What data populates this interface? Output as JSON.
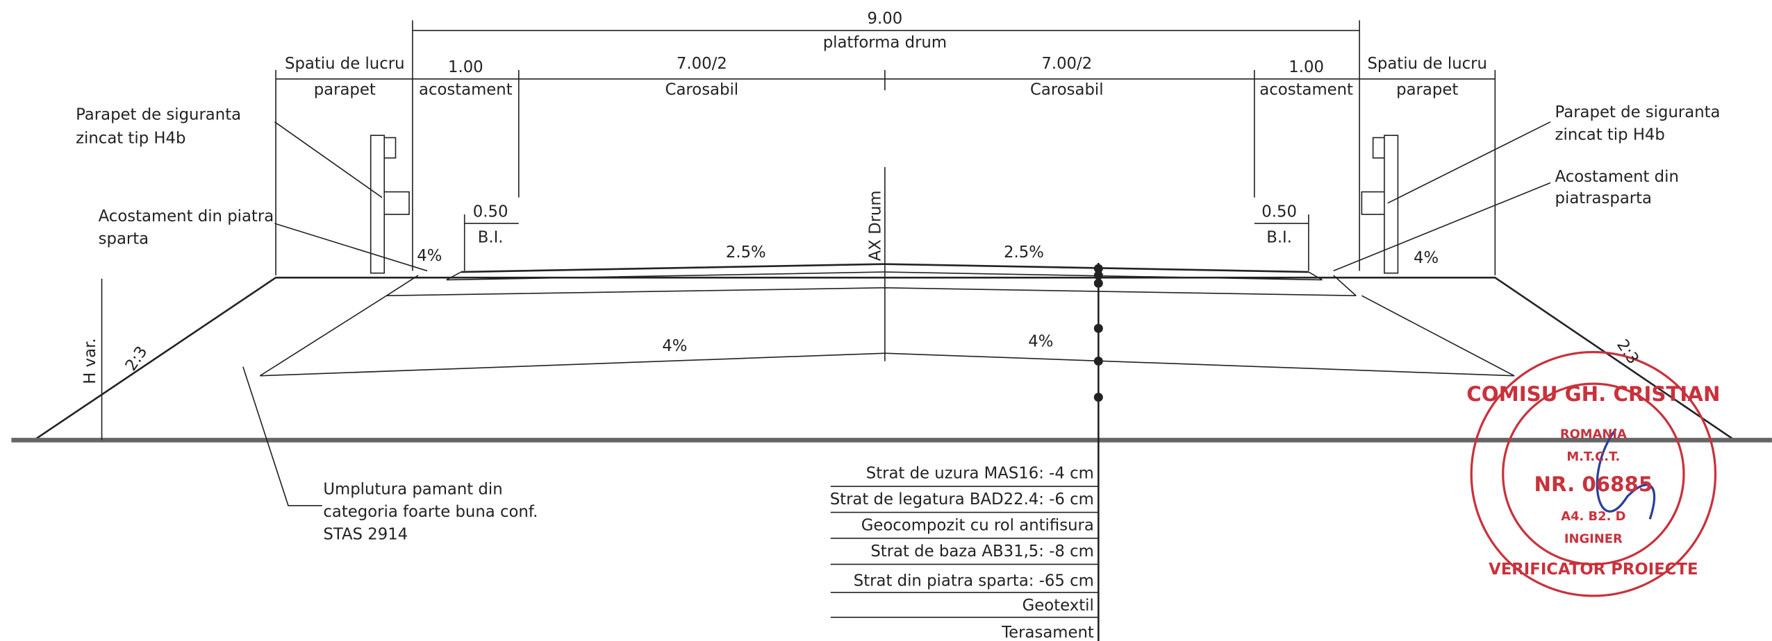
{
  "dimensions": {
    "total": "9.00",
    "total_label": "platforma drum",
    "left_work": {
      "title": "Spatiu de lucru",
      "label": "parapet"
    },
    "left_shoulder": {
      "value": "1.00",
      "label": "acostament"
    },
    "left_lane": {
      "value": "7.00/2",
      "label": "Carosabil"
    },
    "right_lane": {
      "value": "7.00/2",
      "label": "Carosabil"
    },
    "right_shoulder": {
      "value": "1.00",
      "label": "acostament"
    },
    "right_work": {
      "title": "Spatiu de lucru",
      "label": "parapet"
    },
    "left_bi": {
      "value": "0.50",
      "label": "B.I."
    },
    "right_bi": {
      "value": "0.50",
      "label": "B.I."
    }
  },
  "labels": {
    "left_parapet": [
      "Parapet de siguranta",
      "zincat tip H4b"
    ],
    "right_parapet": [
      "Parapet de siguranta",
      "zincat tip H4b"
    ],
    "left_shoulder_note": [
      "Acostament din piatra",
      "sparta"
    ],
    "right_shoulder_note": [
      "Acostament din",
      "piatrasparta"
    ],
    "axis": "AX Drum",
    "fill_note": [
      "Umplutura pamant din",
      "categoria foarte buna conf.",
      "STAS 2914"
    ],
    "height": "H var."
  },
  "slopes": {
    "left_shoulder": "4%",
    "left_lane": "2.5%",
    "right_lane": "2.5%",
    "right_shoulder": "4%",
    "left_base": "4%",
    "right_base": "4%",
    "left_embankment": "2:3",
    "right_embankment": "2:3"
  },
  "layers": [
    "Strat de uzura MAS16: -4 cm",
    "Strat de legatura BAD22.4: -6 cm",
    "Geocompozit cu rol antifisura",
    "Strat de baza AB31,5: -8 cm",
    "Strat din piatra sparta: -65 cm",
    "Geotextil",
    "Terasament"
  ],
  "stamp": {
    "name": "COMISU GH. CRISTIAN",
    "country": "ROMANIA",
    "ministry": "M.T.C.T.",
    "number": "NR. 06885",
    "field": "A4. B2. D",
    "role": "INGINER",
    "title": "VERIFICATOR PROIECTE"
  }
}
